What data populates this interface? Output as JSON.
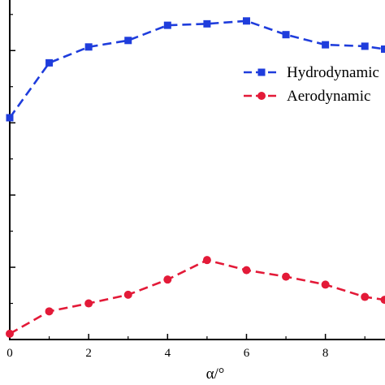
{
  "chart_data": {
    "type": "line",
    "xlabel": "α/°",
    "ylabel": "",
    "xlim": [
      0,
      9.5
    ],
    "ylim": [
      0,
      4.7
    ],
    "x_ticks": [
      0,
      2,
      4,
      6,
      8
    ],
    "y_ticks": [
      0,
      1,
      2,
      3,
      4
    ],
    "legend_position": "top-right",
    "grid": false,
    "series": [
      {
        "name": "Hydrodynamic",
        "color": "#1f3ddc",
        "marker": "square",
        "line_style": "dashed",
        "x": [
          0,
          1,
          2,
          3,
          4,
          5,
          6,
          7,
          8,
          9,
          9.5
        ],
        "y": [
          3.07,
          3.83,
          4.05,
          4.14,
          4.35,
          4.37,
          4.41,
          4.22,
          4.08,
          4.06,
          4.02
        ]
      },
      {
        "name": "Aerodynamic",
        "color": "#e31a38",
        "marker": "circle",
        "line_style": "dashed",
        "x": [
          0,
          1,
          2,
          3,
          4,
          5,
          6,
          7,
          8,
          9,
          9.5
        ],
        "y": [
          0.08,
          0.39,
          0.5,
          0.62,
          0.83,
          1.1,
          0.96,
          0.87,
          0.76,
          0.59,
          0.55
        ]
      }
    ]
  }
}
